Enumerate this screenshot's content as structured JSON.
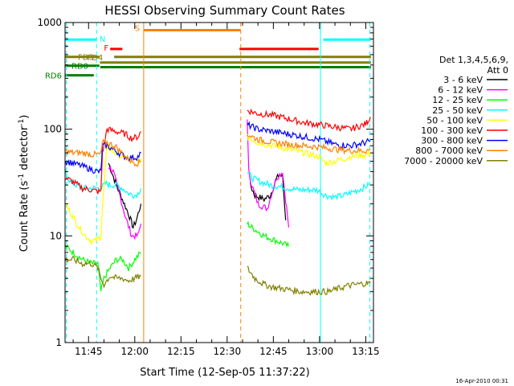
{
  "chart_data": {
    "type": "line",
    "title": "HESSI Observing Summary Count Rates",
    "xlabel": "Start Time (12-Sep-05 11:37:22)",
    "ylabel_main": "Count Rate (s",
    "ylabel_sup1": "-1",
    "ylabel_mid": " detector",
    "ylabel_sup2": "-1",
    "ylabel_end": ")",
    "y_scale": "log",
    "xlim_minutes": [
      697.37,
      797.5
    ],
    "ylim": [
      1,
      1000
    ],
    "x_ticks": [
      {
        "t": 705,
        "label": "11:45"
      },
      {
        "t": 720,
        "label": "12:00"
      },
      {
        "t": 735,
        "label": "12:15"
      },
      {
        "t": 750,
        "label": "12:30"
      },
      {
        "t": 765,
        "label": "12:45"
      },
      {
        "t": 780,
        "label": "13:00"
      },
      {
        "t": 795,
        "label": "13:15"
      }
    ],
    "y_ticks": [
      {
        "v": 1,
        "label": "1"
      },
      {
        "v": 10,
        "label": "10"
      },
      {
        "v": 100,
        "label": "100"
      },
      {
        "v": 1000,
        "label": "1000"
      }
    ],
    "legend_title_1": "Det 1,3,4,5,6,9,",
    "legend_title_2": "Att 0",
    "legend_position": "right",
    "series": [
      {
        "name": "3 - 6 keV",
        "color": "#000000",
        "seg1": [
          [
            711.5,
            48
          ],
          [
            712.5,
            40
          ],
          [
            714,
            30
          ],
          [
            716,
            22
          ],
          [
            718,
            16
          ],
          [
            719.5,
            12
          ],
          [
            720.5,
            14
          ],
          [
            722,
            20
          ]
        ],
        "seg2": [
          [
            757.5,
            30
          ],
          [
            759,
            24
          ],
          [
            762,
            22
          ],
          [
            764,
            24
          ],
          [
            766,
            34
          ],
          [
            767,
            38
          ],
          [
            768,
            36
          ],
          [
            769,
            14
          ]
        ]
      },
      {
        "name": "6 - 12 keV",
        "color": "#ff00ff",
        "seg1": [
          [
            711.5,
            45
          ],
          [
            713,
            40
          ],
          [
            715,
            25
          ],
          [
            717,
            15
          ],
          [
            719,
            10
          ],
          [
            721,
            10
          ],
          [
            722,
            13
          ]
        ],
        "seg2": [
          [
            756.5,
            130
          ],
          [
            757,
            40
          ],
          [
            758,
            30
          ],
          [
            760,
            20
          ],
          [
            763,
            18
          ],
          [
            766,
            35
          ],
          [
            768,
            40
          ],
          [
            770,
            12
          ]
        ]
      },
      {
        "name": "12 - 25 keV",
        "color": "#00ff00",
        "seg1": [
          [
            697.5,
            8
          ],
          [
            700,
            7
          ],
          [
            703,
            6
          ],
          [
            706,
            5.5
          ],
          [
            708,
            5.5
          ],
          [
            709,
            3
          ],
          [
            710,
            4
          ],
          [
            712,
            5
          ],
          [
            714,
            6
          ],
          [
            716,
            6
          ],
          [
            718,
            5
          ],
          [
            720,
            6
          ],
          [
            722,
            7
          ]
        ],
        "seg2": [
          [
            756.5,
            13
          ],
          [
            758,
            12
          ],
          [
            760,
            11
          ],
          [
            762,
            10
          ],
          [
            764,
            9.5
          ],
          [
            766,
            9
          ],
          [
            768,
            8.5
          ],
          [
            770,
            8
          ]
        ]
      },
      {
        "name": "25 - 50 keV",
        "color": "#00ffff",
        "seg1": [
          [
            697.5,
            40
          ],
          [
            699,
            32
          ],
          [
            701,
            30
          ],
          [
            703,
            28
          ],
          [
            705,
            28
          ],
          [
            707,
            28
          ],
          [
            709,
            28
          ],
          [
            710.5,
            31
          ],
          [
            712,
            30
          ],
          [
            714,
            30
          ],
          [
            716,
            28
          ],
          [
            718,
            25
          ],
          [
            720,
            24
          ],
          [
            721,
            25
          ],
          [
            722,
            28
          ]
        ],
        "seg2": [
          [
            756.5,
            40
          ],
          [
            758,
            35
          ],
          [
            761,
            32
          ],
          [
            764,
            30
          ],
          [
            767,
            29
          ],
          [
            770,
            28
          ],
          [
            773,
            27
          ],
          [
            776,
            27
          ],
          [
            779,
            27
          ],
          [
            782,
            24
          ],
          [
            785,
            23
          ],
          [
            788,
            24
          ],
          [
            791,
            26
          ],
          [
            794,
            28
          ],
          [
            796,
            30
          ]
        ]
      },
      {
        "name": "50 - 100 keV",
        "color": "#ffff00",
        "seg1": [
          [
            697.5,
            20
          ],
          [
            700,
            15
          ],
          [
            702,
            12
          ],
          [
            704,
            10
          ],
          [
            706,
            9
          ],
          [
            707.5,
            9
          ],
          [
            709,
            10
          ],
          [
            709.5,
            18
          ],
          [
            711,
            70
          ],
          [
            713,
            62
          ],
          [
            716,
            55
          ],
          [
            718,
            52
          ],
          [
            720,
            50
          ],
          [
            722,
            50
          ]
        ],
        "seg2": [
          [
            756.5,
            85
          ],
          [
            760,
            75
          ],
          [
            765,
            70
          ],
          [
            770,
            65
          ],
          [
            775,
            60
          ],
          [
            780,
            55
          ],
          [
            782,
            48
          ],
          [
            785,
            50
          ],
          [
            790,
            55
          ],
          [
            795,
            58
          ],
          [
            796.5,
            60
          ]
        ]
      },
      {
        "name": "100 - 300 keV",
        "color": "#ff0000",
        "seg1": [
          [
            697.5,
            35
          ],
          [
            700,
            32
          ],
          [
            703,
            28
          ],
          [
            706,
            27
          ],
          [
            708,
            26
          ],
          [
            709,
            26
          ],
          [
            709.5,
            60
          ],
          [
            711,
            100
          ],
          [
            714,
            95
          ],
          [
            717,
            90
          ],
          [
            719,
            82
          ],
          [
            721,
            85
          ],
          [
            722,
            95
          ]
        ],
        "seg2": [
          [
            756.5,
            150
          ],
          [
            760,
            140
          ],
          [
            765,
            135
          ],
          [
            770,
            125
          ],
          [
            775,
            115
          ],
          [
            780,
            110
          ],
          [
            785,
            105
          ],
          [
            790,
            100
          ],
          [
            795,
            112
          ],
          [
            796.5,
            130
          ]
        ]
      },
      {
        "name": "300 - 800 keV",
        "color": "#0000ff",
        "seg1": [
          [
            697.5,
            50
          ],
          [
            700,
            48
          ],
          [
            703,
            45
          ],
          [
            706,
            42
          ],
          [
            708,
            40
          ],
          [
            709,
            40
          ],
          [
            709.5,
            70
          ],
          [
            711,
            70
          ],
          [
            714,
            62
          ],
          [
            717,
            55
          ],
          [
            719,
            54
          ],
          [
            721,
            55
          ],
          [
            722,
            60
          ]
        ],
        "seg2": [
          [
            756.5,
            110
          ],
          [
            760,
            100
          ],
          [
            765,
            95
          ],
          [
            770,
            90
          ],
          [
            775,
            85
          ],
          [
            780,
            80
          ],
          [
            785,
            72
          ],
          [
            790,
            70
          ],
          [
            795,
            75
          ],
          [
            796.5,
            78
          ]
        ]
      },
      {
        "name": "800 - 7000 keV",
        "color": "#ff8000",
        "seg1": [
          [
            697.5,
            62
          ],
          [
            700,
            60
          ],
          [
            703,
            60
          ],
          [
            706,
            58
          ],
          [
            708,
            58
          ],
          [
            709,
            58
          ],
          [
            709.5,
            75
          ],
          [
            711,
            75
          ],
          [
            714,
            68
          ],
          [
            717,
            55
          ],
          [
            719,
            50
          ],
          [
            721,
            48
          ],
          [
            722,
            50
          ]
        ],
        "seg2": [
          [
            756.5,
            90
          ],
          [
            760,
            80
          ],
          [
            765,
            75
          ],
          [
            770,
            72
          ],
          [
            775,
            70
          ],
          [
            780,
            68
          ],
          [
            785,
            65
          ],
          [
            790,
            63
          ],
          [
            795,
            63
          ],
          [
            796.5,
            64
          ]
        ]
      },
      {
        "name": "7000 - 20000 keV",
        "color": "#808000",
        "seg1": [
          [
            697.5,
            6
          ],
          [
            700,
            6
          ],
          [
            703,
            5.5
          ],
          [
            706,
            5.5
          ],
          [
            708,
            5
          ],
          [
            709,
            4
          ],
          [
            710,
            3.5
          ],
          [
            712,
            4.2
          ],
          [
            714,
            4
          ],
          [
            716,
            4
          ],
          [
            718,
            3.8
          ],
          [
            720,
            4
          ],
          [
            722,
            4.2
          ]
        ],
        "seg2": [
          [
            756.5,
            5
          ],
          [
            759,
            4
          ],
          [
            762,
            3.5
          ],
          [
            765,
            3.3
          ],
          [
            768,
            3.2
          ],
          [
            771,
            3.1
          ],
          [
            774,
            3
          ],
          [
            777,
            3
          ],
          [
            780,
            3
          ],
          [
            783,
            3
          ],
          [
            786,
            3.2
          ],
          [
            789,
            3.4
          ],
          [
            792,
            3.5
          ],
          [
            795,
            3.6
          ],
          [
            796.5,
            3.6
          ]
        ]
      }
    ],
    "flag_bars": [
      {
        "label": "N",
        "color": "#00ffff",
        "t0": 697.5,
        "t1": 707.5,
        "logy": 2.84
      },
      {
        "label": "",
        "color": "#00ffff",
        "t0": 781.2,
        "t1": 796.6,
        "logy": 2.84
      },
      {
        "label": "F",
        "color": "#ff0000",
        "t0": 712.0,
        "t1": 716.0,
        "logy": 2.752
      },
      {
        "label": "",
        "color": "#ff0000",
        "t0": 754.0,
        "t1": 779.7,
        "logy": 2.752
      },
      {
        "label": "S",
        "color": "#ff8000",
        "t0": 722.9,
        "t1": 754.4,
        "logy": 2.928
      },
      {
        "label": "FD3",
        "color": "#808000",
        "t0": 697.5,
        "t1": 708.5,
        "logy": 2.678
      },
      {
        "label": "",
        "color": "#808000",
        "t0": 713.3,
        "t1": 796.7,
        "logy": 2.678
      },
      {
        "label": "FD4",
        "color": "#808000",
        "t0": 708.7,
        "t1": 796.7,
        "logy": 2.625
      },
      {
        "label": "RD0",
        "color": "#008000",
        "t0": 697.5,
        "t1": 708.5,
        "logy": 2.595
      },
      {
        "label": "",
        "color": "#008000",
        "t0": 708.8,
        "t1": 796.7,
        "logy": 2.582
      },
      {
        "label": "RD6",
        "color": "#008000",
        "t0": 697.5,
        "t1": 706.7,
        "logy": 2.505
      }
    ],
    "markers": [
      {
        "t": 697.8,
        "color": "#00ffff",
        "style": "dashed"
      },
      {
        "t": 707.6,
        "color": "#00ffff",
        "style": "dashed"
      },
      {
        "t": 722.9,
        "color": "#ff8000",
        "style": "solid"
      },
      {
        "t": 754.4,
        "color": "#ff8000",
        "style": "dashed"
      },
      {
        "t": 780.3,
        "color": "#00ffff",
        "style": "solid"
      },
      {
        "t": 796.3,
        "color": "#00ffff",
        "style": "dashed"
      }
    ]
  },
  "footer_date": "16-Apr-2010 00:31"
}
